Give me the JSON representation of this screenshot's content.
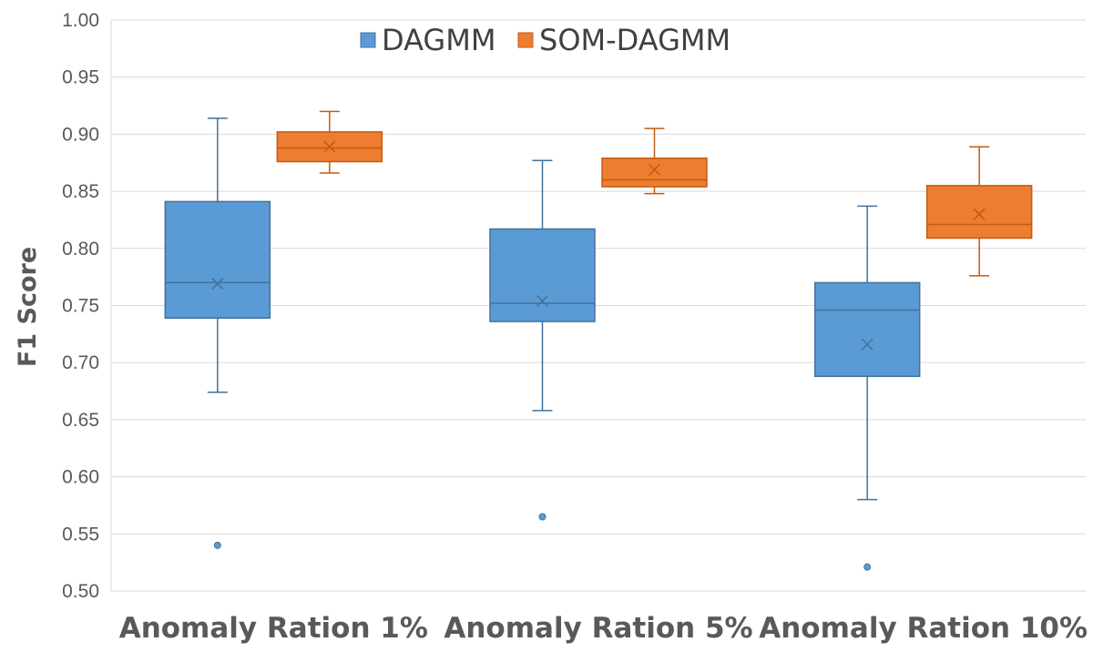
{
  "chart_data": {
    "type": "box",
    "title": "",
    "xlabel": "",
    "ylabel": "F1 Score",
    "ylim": [
      0.5,
      1.0
    ],
    "yticks": [
      "0.50",
      "0.55",
      "0.60",
      "0.65",
      "0.70",
      "0.75",
      "0.80",
      "0.85",
      "0.90",
      "0.95",
      "1.00"
    ],
    "grid": true,
    "legend_position": "top",
    "categories": [
      "Anomaly Ration 1%",
      "Anomaly Ration 5%",
      "Anomaly Ration 10%"
    ],
    "series": [
      {
        "name": "DAGMM",
        "color": "#5b9bd5",
        "edge_color": "#41719c",
        "boxes": [
          {
            "whisker_low": 0.674,
            "q1": 0.739,
            "median": 0.77,
            "q3": 0.841,
            "whisker_high": 0.914,
            "mean": 0.769,
            "outliers": [
              0.54
            ]
          },
          {
            "whisker_low": 0.658,
            "q1": 0.736,
            "median": 0.752,
            "q3": 0.817,
            "whisker_high": 0.877,
            "mean": 0.754,
            "outliers": [
              0.565
            ]
          },
          {
            "whisker_low": 0.58,
            "q1": 0.688,
            "median": 0.746,
            "q3": 0.77,
            "whisker_high": 0.837,
            "mean": 0.716,
            "outliers": [
              0.521
            ]
          }
        ]
      },
      {
        "name": "SOM-DAGMM",
        "color": "#ed7d31",
        "edge_color": "#c55a11",
        "boxes": [
          {
            "whisker_low": 0.866,
            "q1": 0.876,
            "median": 0.888,
            "q3": 0.902,
            "whisker_high": 0.92,
            "mean": 0.889,
            "outliers": []
          },
          {
            "whisker_low": 0.848,
            "q1": 0.854,
            "median": 0.86,
            "q3": 0.879,
            "whisker_high": 0.905,
            "mean": 0.869,
            "outliers": []
          },
          {
            "whisker_low": 0.776,
            "q1": 0.809,
            "median": 0.821,
            "q3": 0.855,
            "whisker_high": 0.889,
            "mean": 0.83,
            "outliers": []
          }
        ]
      }
    ]
  }
}
